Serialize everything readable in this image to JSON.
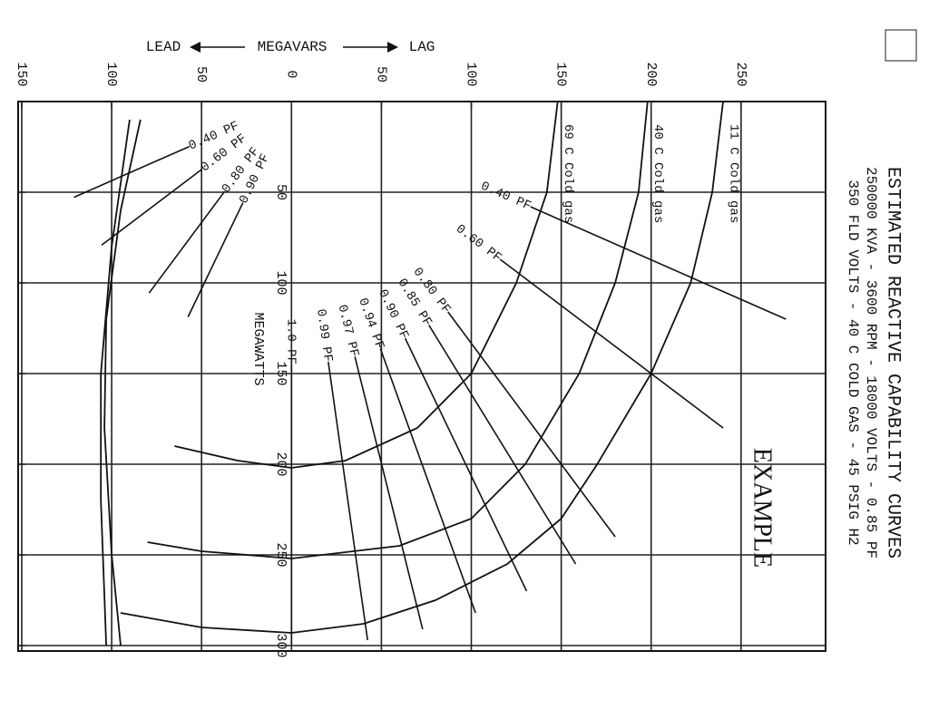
{
  "chart_data": {
    "type": "line",
    "title": "ESTIMATED REACTIVE CAPABILITY CURVES",
    "subtitle": [
      "250000 KVA - 3600 RPM - 18000 VOLTS - 0.85 PF",
      "350 FLD VOLTS - 40 C COLD GAS - 45 PSIG H2"
    ],
    "x_label": {
      "lead": "LEAD",
      "text": "MEGAVARS",
      "lag": "LAG"
    },
    "y_label": "MEGAWATTS",
    "annotation": "EXAMPLE",
    "xlim": [
      -152,
      297
    ],
    "xticks": [
      {
        "value": -150,
        "label": "150"
      },
      {
        "value": -100,
        "label": "100"
      },
      {
        "value": -50,
        "label": "50"
      },
      0,
      50,
      100,
      150,
      200,
      250
    ],
    "ylim": [
      0,
      303
    ],
    "yticks": [
      50,
      100,
      150,
      200,
      250,
      300
    ],
    "grid": true,
    "color": "#111111",
    "series": [
      {
        "name": "11 C Cold gas",
        "x": [
          240,
          234,
          222,
          200,
          170,
          150,
          120,
          80,
          40,
          0,
          -50,
          -95
        ],
        "values": [
          0,
          50,
          100,
          150,
          200,
          230,
          255,
          275,
          288,
          293,
          290,
          282
        ]
      },
      {
        "name": "40 C Cold gas",
        "x": [
          198,
          193,
          180,
          160,
          130,
          100,
          60,
          0,
          -50,
          -80
        ],
        "values": [
          0,
          50,
          100,
          150,
          200,
          230,
          245,
          252,
          248,
          243
        ]
      },
      {
        "name": "69 C Cold gas",
        "x": [
          148,
          142,
          125,
          100,
          70,
          30,
          0,
          -30,
          -65
        ],
        "values": [
          0,
          50,
          100,
          150,
          180,
          198,
          202,
          198,
          190
        ]
      },
      {
        "x": [
          -84,
          -95,
          -103,
          -104,
          -100,
          -95
        ],
        "values": [
          10,
          60,
          120,
          180,
          250,
          300
        ]
      },
      {
        "x": [
          -90,
          -100,
          -106,
          -106,
          -103
        ],
        "values": [
          10,
          80,
          150,
          220,
          300
        ]
      }
    ],
    "pf_lines": [
      {
        "label": "0.40 PF",
        "pf": 0.4,
        "side": "lag"
      },
      {
        "label": "0.60 PF",
        "pf": 0.6,
        "side": "lag"
      },
      {
        "label": "0.80 PF",
        "pf": 0.8,
        "side": "lag"
      },
      {
        "label": "0.85 PF",
        "pf": 0.85,
        "side": "lag"
      },
      {
        "label": "0.90 PF",
        "pf": 0.9,
        "side": "lag"
      },
      {
        "label": "0.94 PF",
        "pf": 0.94,
        "side": "lag"
      },
      {
        "label": "0.97 PF",
        "pf": 0.97,
        "side": "lag"
      },
      {
        "label": "0.99 PF",
        "pf": 0.99,
        "side": "lag"
      },
      {
        "label": "1.0 PF",
        "pf": 1.0,
        "side": "lag"
      },
      {
        "label": "0.40 PF",
        "pf": 0.4,
        "side": "lead"
      },
      {
        "label": "0.60 PF",
        "pf": 0.6,
        "side": "lead"
      },
      {
        "label": "0.80 PF",
        "pf": 0.8,
        "side": "lead"
      },
      {
        "label": "0.90 PF",
        "pf": 0.9,
        "side": "lead"
      }
    ]
  }
}
